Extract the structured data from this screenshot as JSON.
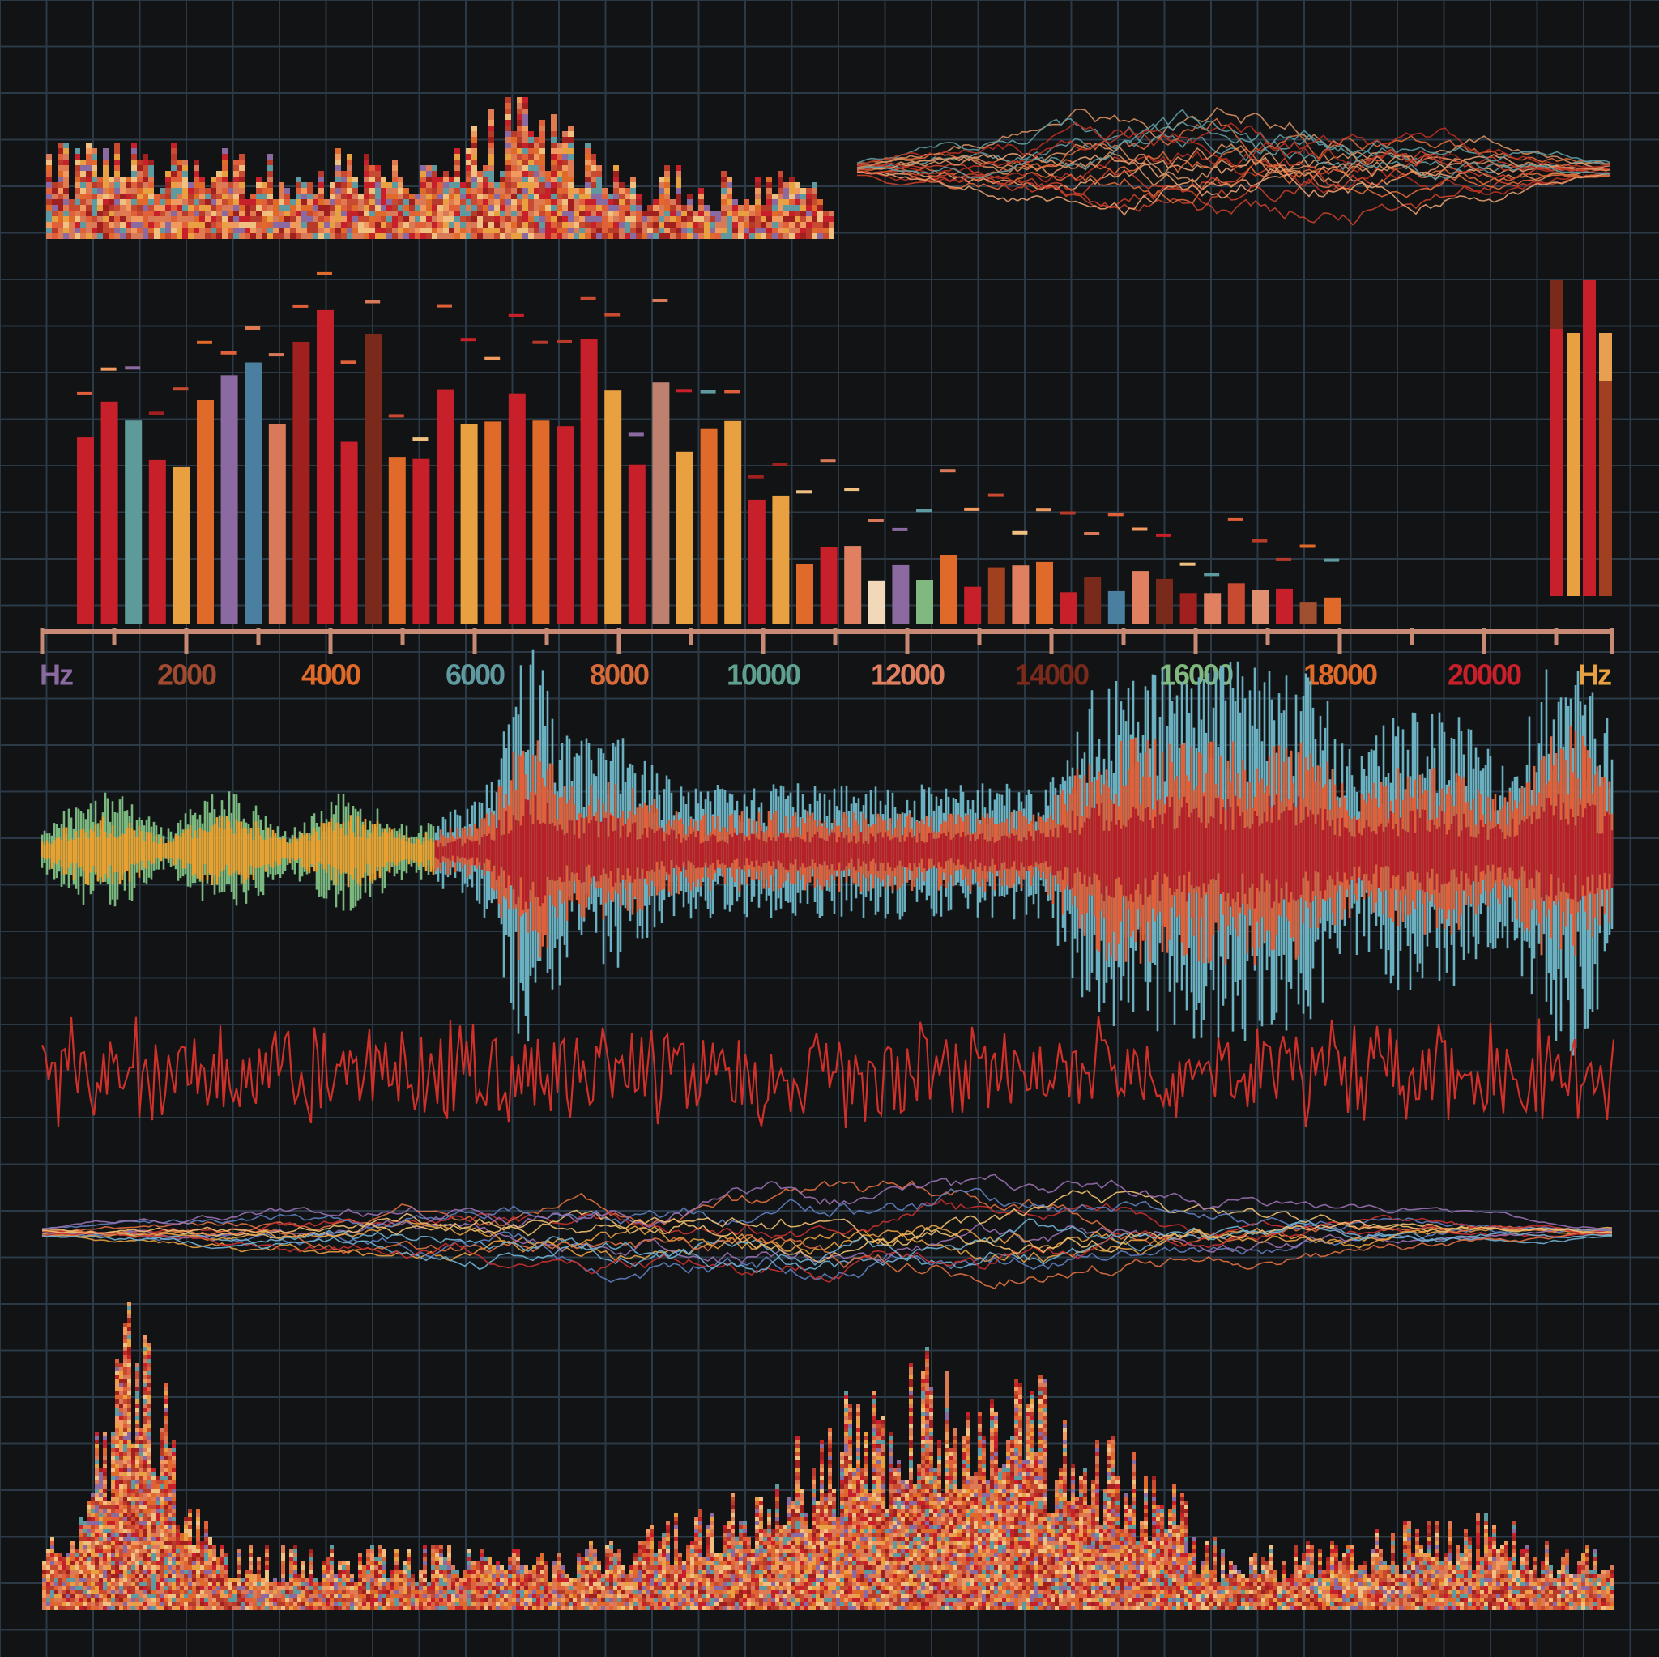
{
  "axis": {
    "labels": [
      "Hz",
      "2000",
      "4000",
      "6000",
      "8000",
      "10000",
      "12000",
      "14000",
      "16000",
      "18000",
      "20000",
      "Hz"
    ]
  }
}
